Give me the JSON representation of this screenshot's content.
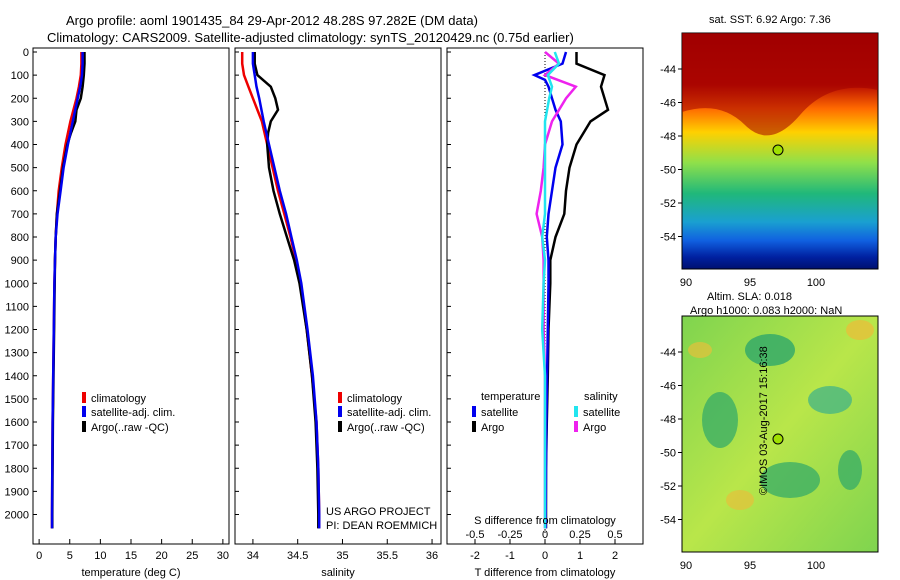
{
  "header": {
    "title_line1": "Argo profile: aoml 1901435_84 29-Apr-2012 48.28S 97.282E (DM data)",
    "title_line2": "Climatology: CARS2009. Satellite-adjusted climatology: synTS_20120429.nc (0.75d earlier)"
  },
  "maps": {
    "sst_title": "sat. SST: 6.92 Argo: 7.36",
    "sla_title1": "Altim. SLA: 0.018",
    "sla_title2": "Argo h1000: 0.083 h2000: NaN",
    "credit": "©IMOS 03-Aug-2017 15:16:38",
    "lat_ticks": [
      "-44",
      "-46",
      "-48",
      "-50",
      "-52",
      "-54"
    ],
    "lon_ticks": [
      "90",
      "95",
      "100"
    ]
  },
  "colors": {
    "climatology": "#ee0000",
    "satellite": "#0000ee",
    "argo": "#000000",
    "s_satellite": "#22e5ef",
    "s_argo": "#ee22ee"
  },
  "chart_data": [
    {
      "type": "line",
      "xlabel": "temperature (deg C)",
      "ylabel": "",
      "xlim": [
        -1,
        31
      ],
      "ylim": [
        2080,
        0
      ],
      "xticks": [
        "0",
        "5",
        "10",
        "15",
        "20",
        "25",
        "30"
      ],
      "yticks": [
        "0",
        "100",
        "200",
        "300",
        "400",
        "500",
        "600",
        "700",
        "800",
        "900",
        "1000",
        "1100",
        "1200",
        "1300",
        "1400",
        "1500",
        "1600",
        "1700",
        "1800",
        "1900",
        "2000"
      ],
      "legend": [
        "climatology",
        "satellite-adj. clim.",
        "Argo(..raw -QC)"
      ],
      "legend_position": "lower-center",
      "series": [
        {
          "name": "climatology",
          "depth": [
            0,
            50,
            100,
            150,
            200,
            300,
            400,
            500,
            600,
            700,
            800,
            900,
            1000,
            1200,
            1400,
            1600,
            1800,
            2000,
            2060
          ],
          "values": [
            6.9,
            6.9,
            6.8,
            6.5,
            6.1,
            5.1,
            4.3,
            3.7,
            3.2,
            2.9,
            2.7,
            2.6,
            2.5,
            2.4,
            2.3,
            2.2,
            2.15,
            2.1,
            2.1
          ]
        },
        {
          "name": "satellite-adj. clim.",
          "depth": [
            0,
            50,
            100,
            150,
            200,
            300,
            400,
            500,
            600,
            700,
            800,
            900,
            1000,
            1200,
            1400,
            1600,
            1800,
            2000,
            2060
          ],
          "values": [
            7.1,
            7.1,
            7.0,
            6.7,
            6.3,
            5.5,
            4.7,
            4.0,
            3.5,
            3.0,
            2.7,
            2.6,
            2.5,
            2.4,
            2.3,
            2.2,
            2.15,
            2.1,
            2.1
          ]
        },
        {
          "name": "Argo(..raw -QC)",
          "depth": [
            0,
            50,
            100,
            150,
            200,
            250,
            300,
            350,
            400,
            500,
            600,
            700,
            800,
            900,
            1000,
            1200,
            1400,
            1600,
            1800,
            2000,
            2060
          ],
          "values": [
            7.4,
            7.4,
            7.3,
            7.1,
            6.8,
            6.1,
            5.9,
            5.2,
            4.6,
            3.9,
            3.4,
            2.9,
            2.7,
            2.6,
            2.55,
            2.45,
            2.35,
            2.25,
            2.2,
            2.15,
            2.15
          ]
        }
      ]
    },
    {
      "type": "line",
      "xlabel": "salinity",
      "xlim": [
        33.8,
        36.1
      ],
      "ylim": [
        2080,
        0
      ],
      "xticks": [
        "34",
        "34.5",
        "35",
        "35.5",
        "36"
      ],
      "legend": [
        "climatology",
        "satellite-adj. clim.",
        "Argo(..raw -QC)"
      ],
      "legend_position": "lower-center",
      "annotation": [
        "US ARGO PROJECT",
        "PI: DEAN ROEMMICH"
      ],
      "series": [
        {
          "name": "climatology",
          "depth": [
            0,
            50,
            100,
            150,
            200,
            300,
            400,
            500,
            600,
            700,
            800,
            900,
            1000,
            1200,
            1400,
            1600,
            1800,
            2000,
            2060
          ],
          "values": [
            33.88,
            33.88,
            33.9,
            33.95,
            34.0,
            34.1,
            34.16,
            34.22,
            34.28,
            34.35,
            34.42,
            34.48,
            34.53,
            34.6,
            34.66,
            34.71,
            34.73,
            34.74,
            34.74
          ]
        },
        {
          "name": "satellite-adj. clim.",
          "depth": [
            0,
            50,
            100,
            150,
            200,
            300,
            400,
            500,
            600,
            700,
            800,
            900,
            1000,
            1200,
            1400,
            1600,
            1800,
            2000,
            2060
          ],
          "values": [
            34.0,
            34.0,
            34.02,
            34.04,
            34.07,
            34.12,
            34.18,
            34.24,
            34.3,
            34.37,
            34.43,
            34.49,
            34.54,
            34.61,
            34.67,
            34.71,
            34.73,
            34.74,
            34.74
          ]
        },
        {
          "name": "Argo(..raw -QC)",
          "depth": [
            0,
            50,
            100,
            150,
            200,
            250,
            300,
            350,
            400,
            500,
            600,
            700,
            800,
            900,
            1000,
            1200,
            1400,
            1600,
            1800,
            2000,
            2060
          ],
          "values": [
            34.02,
            34.02,
            34.05,
            34.2,
            34.25,
            34.28,
            34.2,
            34.17,
            34.16,
            34.18,
            34.23,
            34.3,
            34.38,
            34.46,
            34.52,
            34.6,
            34.66,
            34.7,
            34.72,
            34.73,
            34.73
          ]
        }
      ]
    },
    {
      "type": "line",
      "xlabel": "T difference from climatology",
      "xlabel_top": "S difference from climatology",
      "xlim": [
        -2.8,
        2.8
      ],
      "ylim": [
        2080,
        0
      ],
      "xticks": [
        "-2",
        "-1",
        "0",
        "1",
        "2"
      ],
      "xticks_top": [
        "-0.5",
        "-0.25",
        "0",
        "0.25",
        "0.5"
      ],
      "legend_groups": [
        "temperature",
        "salinity"
      ],
      "legend": [
        "satellite",
        "Argo",
        "satellite",
        "Argo"
      ],
      "legend_position": "lower-center",
      "series": [
        {
          "name": "satellite",
          "group": "temperature",
          "depth": [
            0,
            50,
            100,
            120,
            150,
            200,
            250,
            300,
            400,
            500,
            600,
            700,
            800,
            900,
            1000,
            1200,
            1400,
            1600,
            1800,
            2000,
            2060
          ],
          "values": [
            0.6,
            0.5,
            -0.3,
            0.0,
            0.1,
            0.2,
            0.3,
            0.45,
            0.5,
            0.3,
            0.2,
            0.1,
            0.05,
            0.1,
            0.1,
            0.08,
            0.06,
            0.04,
            0.03,
            0.02,
            0.02
          ]
        },
        {
          "name": "Argo",
          "group": "temperature",
          "depth": [
            0,
            50,
            100,
            150,
            200,
            250,
            300,
            400,
            500,
            600,
            700,
            800,
            900,
            1000,
            1200,
            1400,
            1600,
            1800,
            2000,
            2060
          ],
          "values": [
            0.9,
            0.9,
            1.7,
            1.6,
            1.7,
            1.8,
            1.3,
            0.9,
            0.7,
            0.6,
            0.55,
            0.3,
            0.15,
            0.15,
            0.1,
            0.08,
            0.05,
            0.03,
            0.03,
            0.03
          ]
        },
        {
          "name": "satellite",
          "group": "salinity",
          "depth": [
            0,
            50,
            100,
            150,
            200,
            300,
            400,
            500,
            600,
            700,
            800,
            900,
            1000,
            1200,
            1300,
            1400,
            1600,
            1800,
            2000,
            2060
          ],
          "values": [
            0.07,
            0.1,
            0.02,
            0.05,
            0.03,
            0.0,
            0.0,
            0.0,
            0.0,
            0.0,
            -0.02,
            0.0,
            -0.01,
            -0.02,
            -0.01,
            0.0,
            0.0,
            0.0,
            0.0,
            0.0
          ]
        },
        {
          "name": "Argo",
          "group": "salinity",
          "depth": [
            0,
            50,
            100,
            150,
            200,
            300,
            400,
            500,
            600,
            700,
            800,
            900,
            1000,
            1200,
            1400,
            1600,
            1800,
            2000,
            2060
          ],
          "values": [
            0.0,
            0.1,
            0.0,
            0.22,
            0.15,
            0.05,
            0.0,
            -0.01,
            -0.03,
            -0.06,
            -0.02,
            -0.01,
            -0.01,
            -0.01,
            0.0,
            0.0,
            0.0,
            0.0,
            0.0
          ]
        }
      ]
    }
  ]
}
